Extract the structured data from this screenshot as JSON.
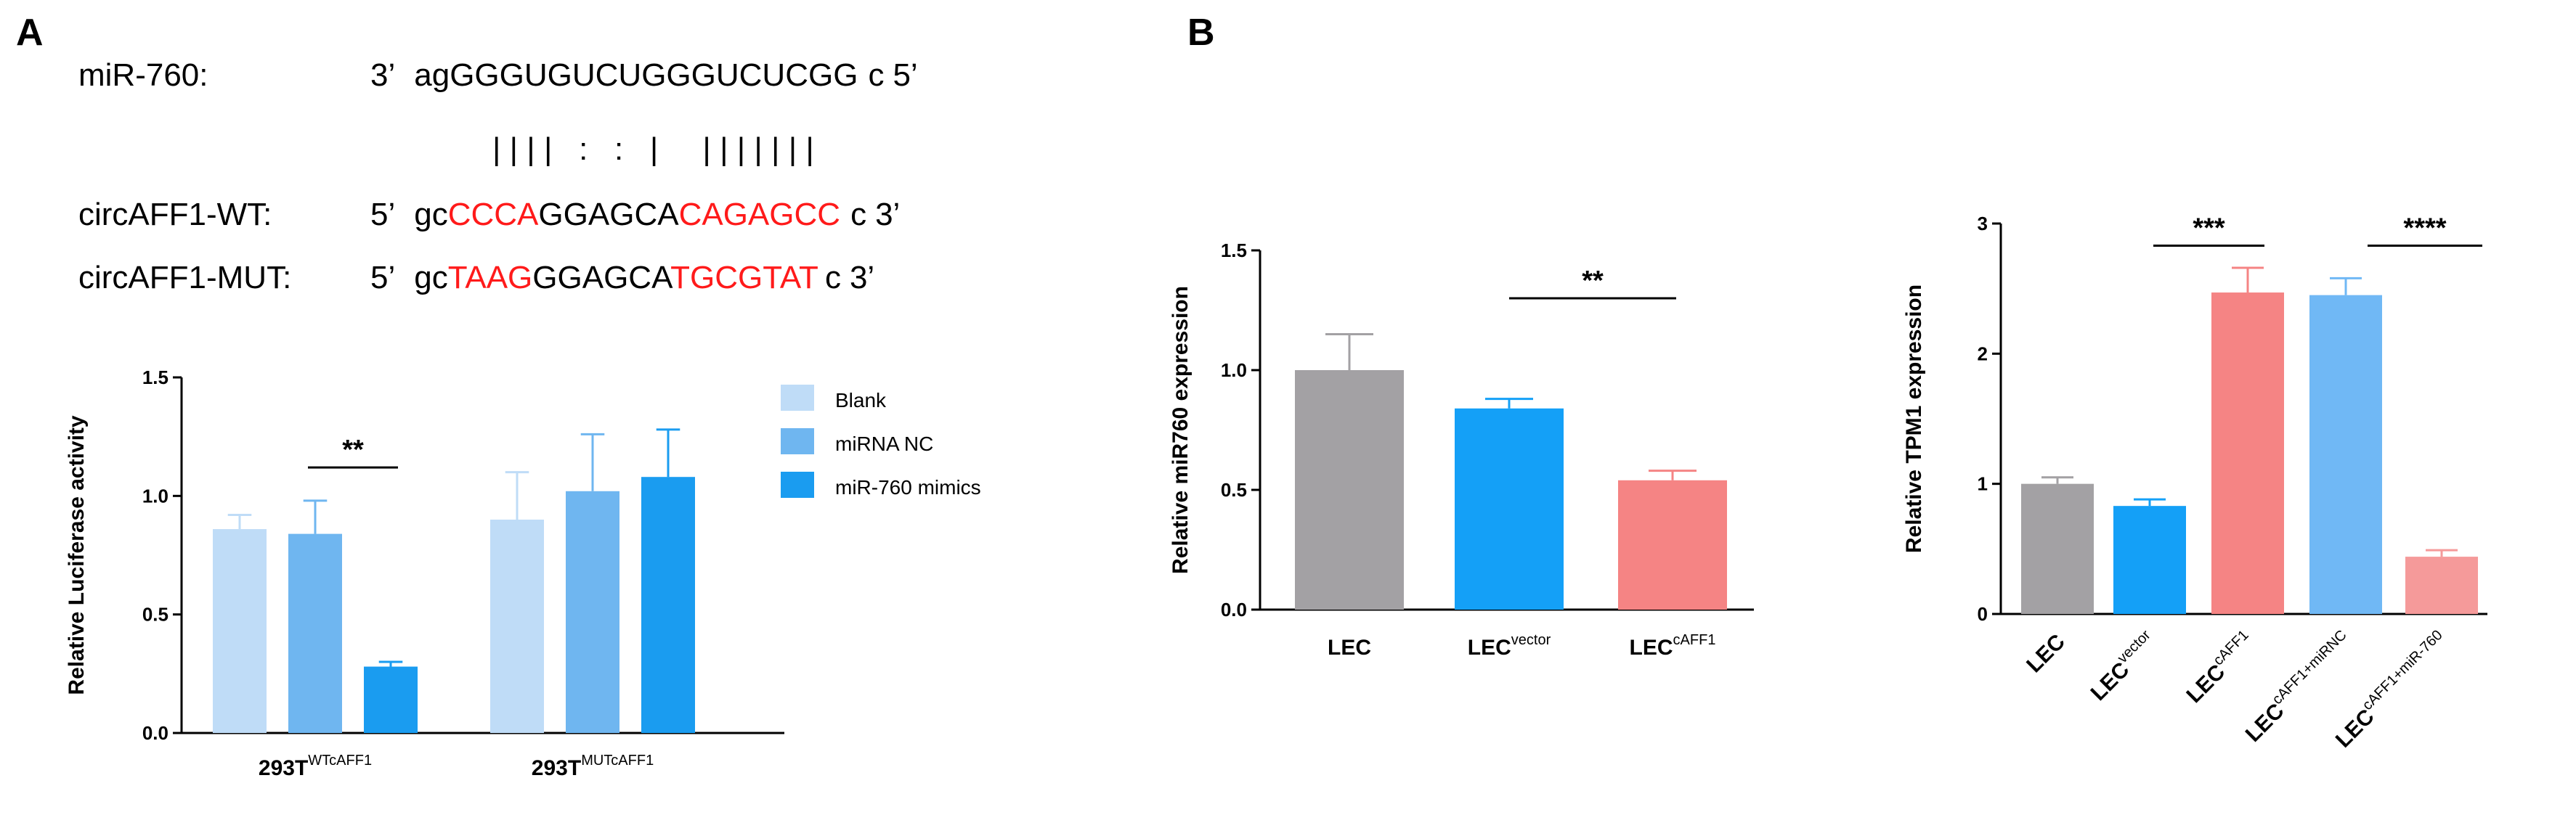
{
  "panels": {
    "a": "A",
    "b": "B"
  },
  "sequence": {
    "mir_label": "miR-760:",
    "mir_prefix": "3’",
    "mir_lower1": "ag",
    "mir_main": "GGGUGUCUGGGUCUCGG",
    "mir_lower2": "c",
    "mir_suffix": "5’",
    "pairing": "| | | |   :   :   |     | | | | | | |",
    "wt_label": "circAFF1-WT:",
    "wt_prefix": "5’",
    "wt_lower1": "gc",
    "wt_red1": "CCCA",
    "wt_mid": "GGAGCA",
    "wt_red2": "CAGAGCC",
    "wt_lower2": "c",
    "wt_suffix": "3’",
    "mut_label": "circAFF1-MUT:",
    "mut_prefix": "5’",
    "mut_lower1": "gc",
    "mut_red1": "TAAG",
    "mut_mid": "GGAGCA",
    "mut_red2": "TGCGTAT",
    "mut_lower2": "c",
    "mut_suffix": "3’",
    "red_color": "#ff1a1a"
  },
  "chart_data": [
    {
      "id": "luciferase",
      "type": "bar",
      "ylabel": "Relative Luciferase activity",
      "ylim": [
        0,
        1.5
      ],
      "yticks": [
        "0.0",
        "0.5",
        "1.0",
        "1.5"
      ],
      "groups": [
        {
          "base": "293T",
          "sup": "WTcAFF1"
        },
        {
          "base": "293T",
          "sup": "MUTcAFF1"
        }
      ],
      "series": [
        {
          "name": "Blank",
          "color": "#bfdcf7",
          "values": [
            0.86,
            0.9
          ],
          "errors": [
            0.06,
            0.2
          ]
        },
        {
          "name": "miRNA NC",
          "color": "#6fb6f0",
          "values": [
            0.84,
            1.02
          ],
          "errors": [
            0.14,
            0.24
          ]
        },
        {
          "name": "miR-760 mimics",
          "color": "#1a9cf0",
          "values": [
            0.28,
            1.08
          ],
          "errors": [
            0.02,
            0.2
          ]
        }
      ],
      "legend": [
        "Blank",
        "miRNA NC",
        "miR-760 mimics"
      ],
      "significance": [
        {
          "label": "**"
        }
      ]
    },
    {
      "id": "mir760",
      "type": "bar",
      "ylabel": "Relative miR760 expression",
      "ylim": [
        0,
        1.5
      ],
      "yticks": [
        "0.0",
        "0.5",
        "1.0",
        "1.5"
      ],
      "categories": [
        {
          "base": "LEC",
          "sup": ""
        },
        {
          "base": "LEC",
          "sup": "vector"
        },
        {
          "base": "LEC",
          "sup": "cAFF1"
        }
      ],
      "values": [
        1.0,
        0.84,
        0.54
      ],
      "errors": [
        0.15,
        0.04,
        0.04
      ],
      "colors": [
        "#a3a1a4",
        "#14a0f7",
        "#f58484"
      ],
      "significance": [
        {
          "label": "**"
        }
      ]
    },
    {
      "id": "tpm1",
      "type": "bar",
      "ylabel": "Relative TPM1 expression",
      "ylim": [
        0,
        3
      ],
      "yticks": [
        "0",
        "1",
        "2",
        "3"
      ],
      "categories": [
        {
          "base": "LEC",
          "sup": ""
        },
        {
          "base": "LEC",
          "sup": "vector"
        },
        {
          "base": "LEC",
          "sup": "cAFF1"
        },
        {
          "base": "LEC",
          "sup": "cAFF1+miRNC"
        },
        {
          "base": "LEC",
          "sup": "cAFF1+miR-760"
        }
      ],
      "values": [
        1.0,
        0.83,
        2.47,
        2.45,
        0.44
      ],
      "errors": [
        0.05,
        0.05,
        0.19,
        0.13,
        0.05
      ],
      "colors": [
        "#a3a1a4",
        "#14a0f7",
        "#f58484",
        "#70b8f5",
        "#f59a9a"
      ],
      "significance": [
        {
          "label": "***"
        },
        {
          "label": "****"
        }
      ]
    }
  ]
}
